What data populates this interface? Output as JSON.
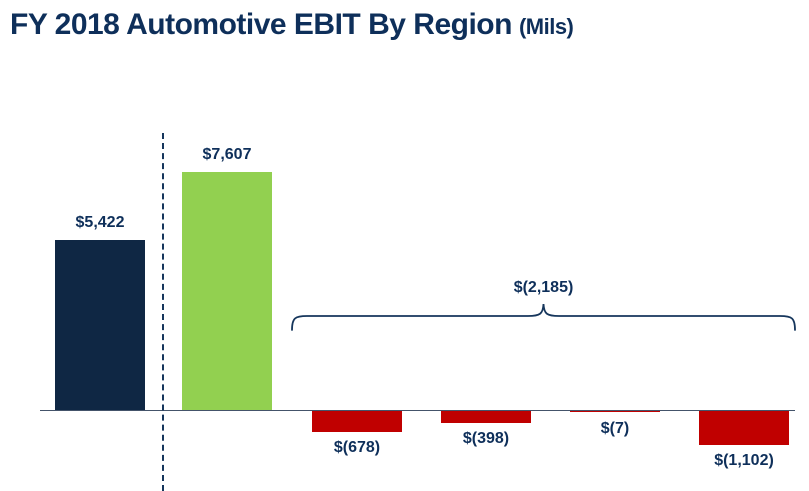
{
  "title": {
    "main": "FY 2018 Automotive EBIT By Region",
    "suffix": "(Mils)"
  },
  "colors": {
    "navy": "#0f2744",
    "green": "#92d050",
    "red": "#c00000",
    "text": "#0e2f5a",
    "axis": "#44546a"
  },
  "chart_data": {
    "type": "bar",
    "title": "FY 2018 Automotive EBIT By Region (Mils)",
    "bars": [
      {
        "label": "$5,422",
        "value": 5422,
        "color": "navy"
      },
      {
        "label": "$7,607",
        "value": 7607,
        "color": "green"
      },
      {
        "label": "$(678)",
        "value": -678,
        "color": "red"
      },
      {
        "label": "$(398)",
        "value": -398,
        "color": "red"
      },
      {
        "label": "$(7)",
        "value": -7,
        "color": "red"
      },
      {
        "label": "$(1,102)",
        "value": -1102,
        "color": "red"
      }
    ],
    "annotation": {
      "label": "$(2,185)",
      "value": -2185,
      "spans_bars": [
        2,
        5
      ],
      "shape": "curly-brace"
    },
    "separator_after_bar": 0,
    "ylim": [
      -1200,
      7700
    ],
    "zero_line": true,
    "grid": false,
    "legend": false,
    "x_tick_labels": []
  }
}
